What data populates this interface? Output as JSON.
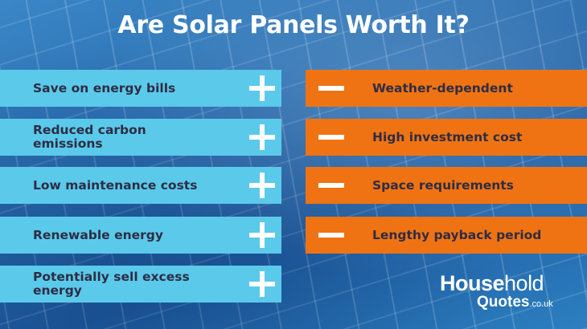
{
  "title": "Are Solar Panels Worth It?",
  "pros": [
    {
      "label": "Save on energy bills",
      "icon": "plus-icon"
    },
    {
      "label": "Reduced carbon emissions",
      "icon": "plus-icon"
    },
    {
      "label": "Low maintenance costs",
      "icon": "plus-icon"
    },
    {
      "label": "Renewable energy",
      "icon": "plus-icon"
    },
    {
      "label": "Potentially sell excess energy",
      "icon": "plus-icon"
    }
  ],
  "cons": [
    {
      "label": "Weather-dependent",
      "icon": "minus-icon"
    },
    {
      "label": "High investment cost",
      "icon": "minus-icon"
    },
    {
      "label": "Space requirements",
      "icon": "minus-icon"
    },
    {
      "label": "Lengthy payback period",
      "icon": "minus-icon"
    }
  ],
  "logo": {
    "part1": "House",
    "part2": "hold",
    "line2": "Quotes",
    "tld": ".co.uk"
  },
  "colors": {
    "pro_bar": "#5bc9ea",
    "con_bar": "#f07313",
    "label_text": "#2d2d44",
    "background": "#2a6fb2"
  }
}
